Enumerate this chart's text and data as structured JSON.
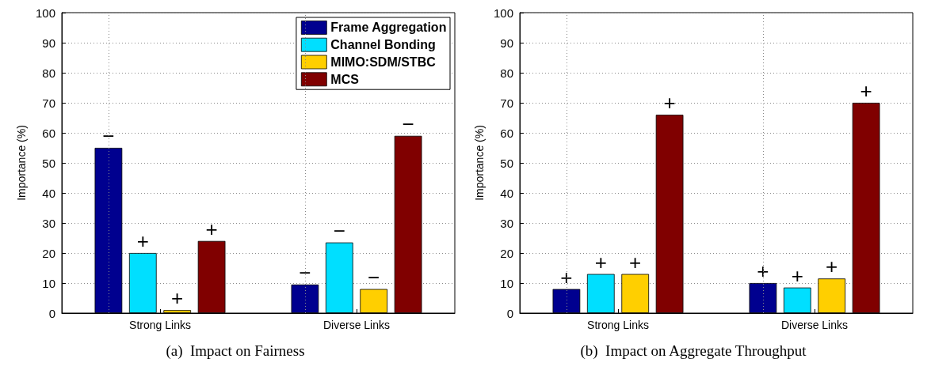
{
  "chart_data": [
    {
      "type": "bar",
      "title": "(a)  Impact on Fairness",
      "ylabel": "Importance (%)",
      "categories": [
        "Strong Links",
        "Diverse Links"
      ],
      "ylim": [
        0,
        100
      ],
      "yticks": [
        0,
        10,
        20,
        30,
        40,
        50,
        60,
        70,
        80,
        90,
        100
      ],
      "grid": true,
      "legend": "top right",
      "series": [
        {
          "name": "Frame Aggregation",
          "color": "#00008f",
          "values": [
            55,
            9.5
          ],
          "value_labels": [
            "−",
            "−"
          ]
        },
        {
          "name": "Channel Bonding",
          "color": "#00dfff",
          "values": [
            20,
            23.5
          ],
          "value_labels": [
            "+",
            "−"
          ]
        },
        {
          "name": "MIMO:SDM/STBC",
          "color": "#ffcf00",
          "values": [
            1,
            8
          ],
          "value_labels": [
            "+",
            "−"
          ]
        },
        {
          "name": "MCS",
          "color": "#800000",
          "values": [
            24,
            59
          ],
          "value_labels": [
            "+",
            "−"
          ]
        }
      ]
    },
    {
      "type": "bar",
      "title": "(b)  Impact on Aggregate Throughput",
      "ylabel": "Importance (%)",
      "categories": [
        "Strong Links",
        "Diverse Links"
      ],
      "ylim": [
        0,
        100
      ],
      "yticks": [
        0,
        10,
        20,
        30,
        40,
        50,
        60,
        70,
        80,
        90,
        100
      ],
      "grid": true,
      "series": [
        {
          "color": "#00008f",
          "values": [
            8,
            10
          ],
          "value_labels": [
            "+",
            "+"
          ]
        },
        {
          "color": "#00dfff",
          "values": [
            13,
            8.5
          ],
          "value_labels": [
            "+",
            "+"
          ]
        },
        {
          "color": "#ffcf00",
          "values": [
            13,
            11.5
          ],
          "value_labels": [
            "+",
            "+"
          ]
        },
        {
          "color": "#800000",
          "values": [
            66,
            70
          ],
          "value_labels": [
            "+",
            "+"
          ]
        }
      ]
    }
  ]
}
